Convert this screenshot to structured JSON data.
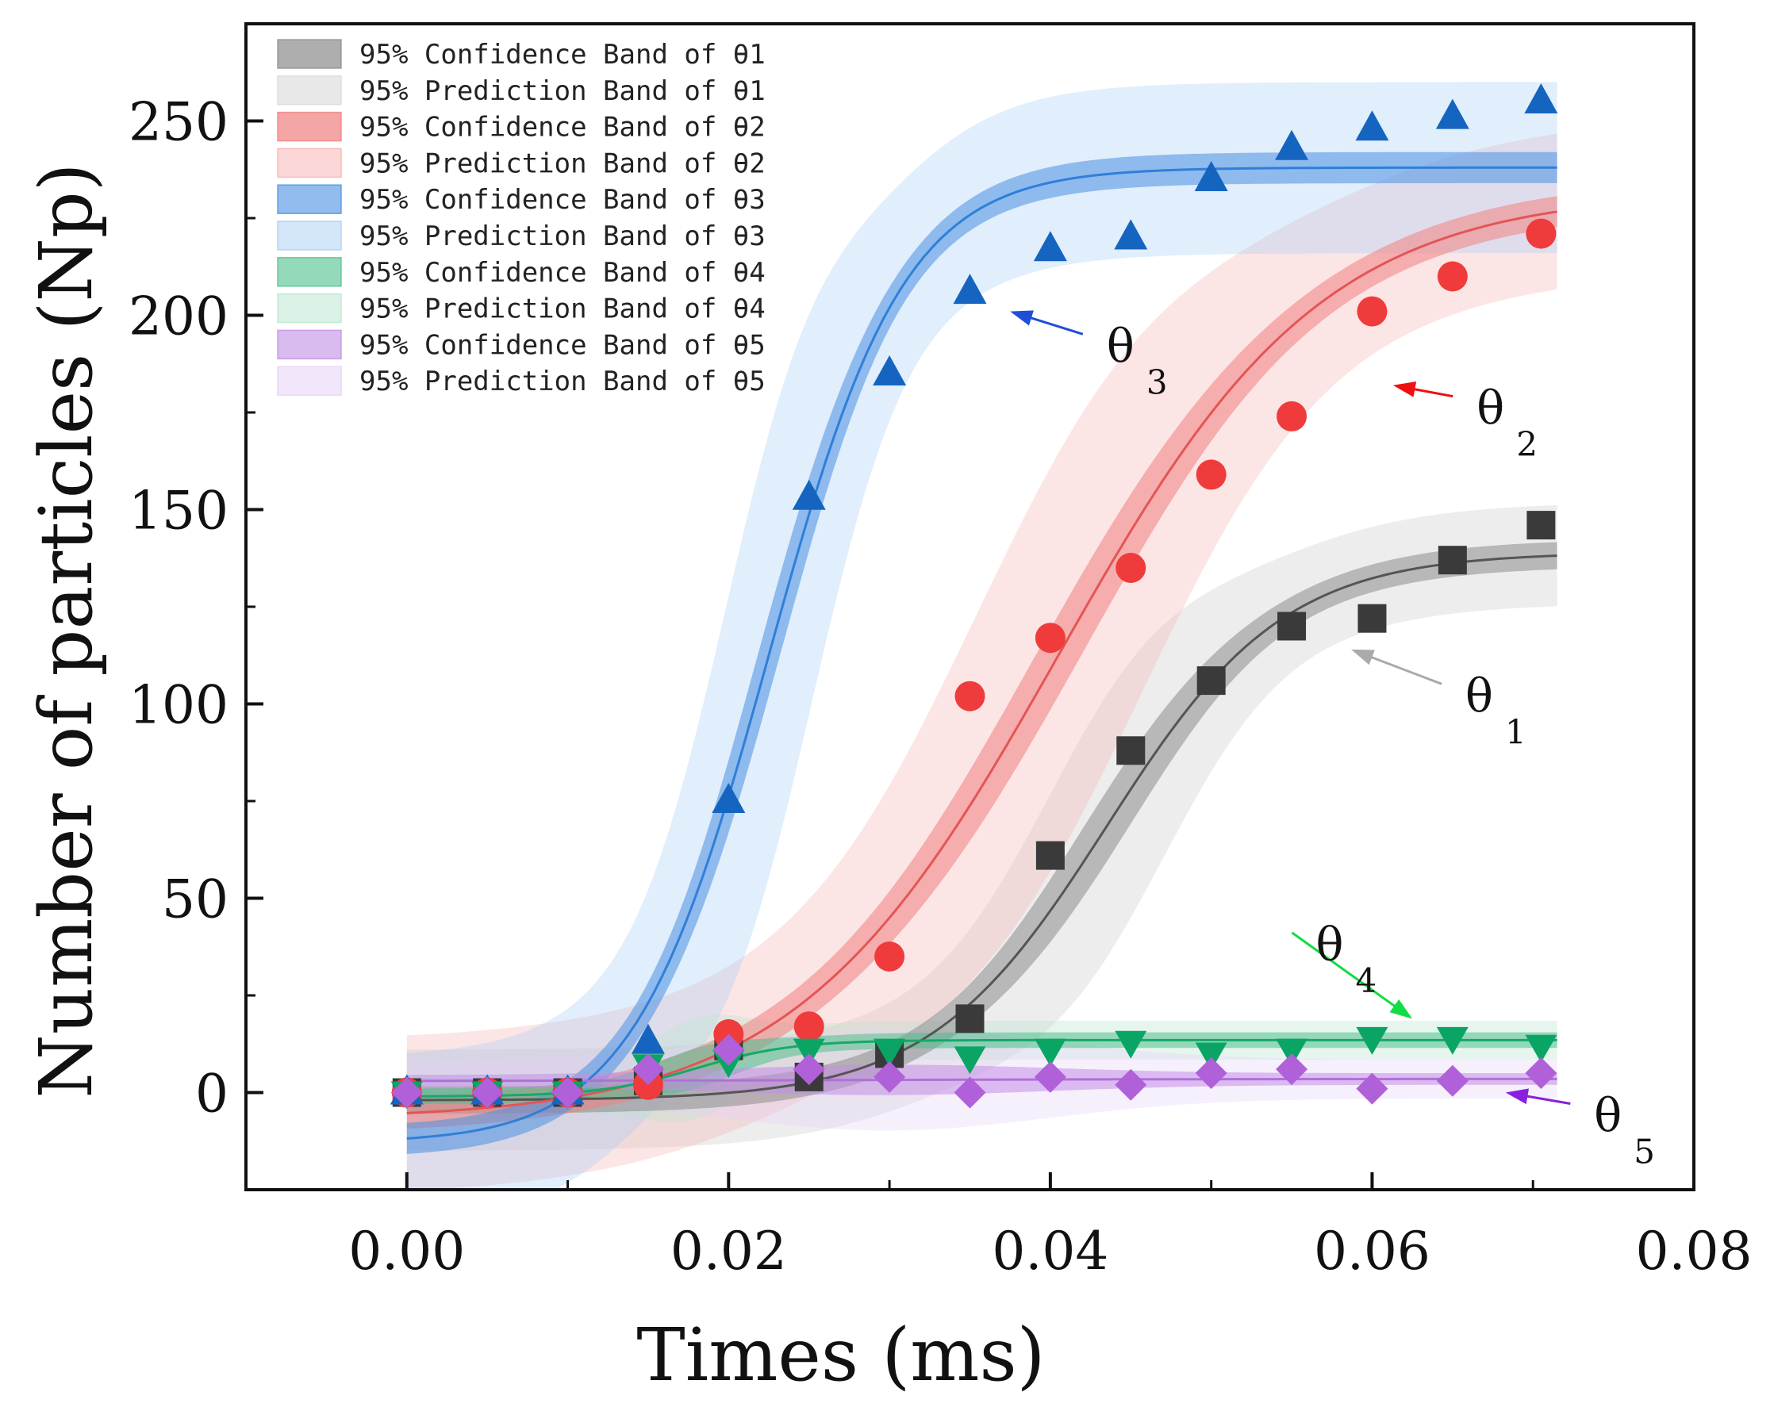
{
  "chart_data": {
    "type": "scatter",
    "title": "",
    "xlabel": "Times (ms)",
    "ylabel": "Number of particles (Np)",
    "xlim": [
      -0.01,
      0.08
    ],
    "ylim": [
      -25,
      275
    ],
    "xticks": [
      0.0,
      0.02,
      0.04,
      0.06,
      0.08
    ],
    "xtick_labels": [
      "0.00",
      "0.02",
      "0.04",
      "0.06",
      "0.08"
    ],
    "yticks": [
      0,
      50,
      100,
      150,
      200,
      250
    ],
    "ytick_labels": [
      "0",
      "50",
      "100",
      "150",
      "200",
      "250"
    ],
    "legend": [
      {
        "label": "95% Confidence Band of  θ1",
        "color": "#8c8c8c",
        "opacity": 0.7
      },
      {
        "label": "95% Prediction Band of  θ1",
        "color": "#d9d9d9",
        "opacity": 0.6
      },
      {
        "label": "95% Confidence Band of  θ2",
        "color": "#f08080",
        "opacity": 0.7
      },
      {
        "label": "95% Prediction Band of  θ2",
        "color": "#f7b0b0",
        "opacity": 0.5
      },
      {
        "label": "95% Confidence Band of  θ3",
        "color": "#4a90e2",
        "opacity": 0.6
      },
      {
        "label": "95% Prediction Band of  θ3",
        "color": "#a9cdf5",
        "opacity": 0.5
      },
      {
        "label": "95% Confidence Band of  θ4",
        "color": "#4fc08d",
        "opacity": 0.6
      },
      {
        "label": "95% Prediction Band of  θ4",
        "color": "#b7e6cf",
        "opacity": 0.5
      },
      {
        "label": "95% Confidence Band of  θ5",
        "color": "#c28ee6",
        "opacity": 0.6
      },
      {
        "label": "95% Prediction Band of  θ5",
        "color": "#e5d0f5",
        "opacity": 0.5
      }
    ],
    "series": [
      {
        "name": "θ1",
        "marker": "square",
        "color": "#3a3a3a",
        "line_color": "#555555",
        "band_color": "#8c8c8c",
        "pred_color": "#cccccc",
        "fit": {
          "A1": -2,
          "A2": 139,
          "x0": 0.0435,
          "dx": 0.0055,
          "ci": 3.5,
          "pi": 13
        },
        "x": [
          0.0,
          0.005,
          0.01,
          0.015,
          0.02,
          0.025,
          0.03,
          0.035,
          0.04,
          0.045,
          0.05,
          0.055,
          0.06,
          0.065,
          0.0705
        ],
        "y": [
          0,
          0,
          0,
          3,
          12,
          4,
          10,
          19,
          61,
          88,
          106,
          120,
          122,
          137,
          146
        ]
      },
      {
        "name": "θ2",
        "marker": "circle",
        "color": "#ef3b3b",
        "line_color": "#e35555",
        "band_color": "#f08080",
        "pred_color": "#f7b5b5",
        "fit": {
          "A1": -7,
          "A2": 232,
          "x0": 0.0405,
          "dx": 0.0082,
          "ci": 4,
          "pi": 20
        },
        "x": [
          0.0,
          0.005,
          0.01,
          0.015,
          0.02,
          0.025,
          0.03,
          0.035,
          0.04,
          0.045,
          0.05,
          0.055,
          0.06,
          0.065,
          0.0705
        ],
        "y": [
          0,
          0,
          0,
          2,
          15,
          17,
          35,
          102,
          117,
          135,
          159,
          174,
          201,
          210,
          221
        ]
      },
      {
        "name": "θ3",
        "marker": "triangle-up",
        "color": "#1565c0",
        "line_color": "#2f7fd8",
        "band_color": "#4a90e2",
        "pred_color": "#a9cdf5",
        "fit": {
          "A1": -13,
          "A2": 238,
          "x0": 0.0225,
          "dx": 0.0042,
          "ci": 4,
          "pi": 22
        },
        "x": [
          0.0,
          0.005,
          0.01,
          0.015,
          0.02,
          0.025,
          0.03,
          0.035,
          0.04,
          0.045,
          0.05,
          0.055,
          0.06,
          0.065,
          0.0705
        ],
        "y": [
          0,
          0,
          0,
          13,
          75,
          153,
          185,
          206,
          217,
          220,
          235,
          243,
          248,
          251,
          255
        ]
      },
      {
        "name": "θ4",
        "marker": "triangle-down",
        "color": "#0aa565",
        "line_color": "#16a86a",
        "band_color": "#4fc08d",
        "pred_color": "#b7e6cf",
        "fit": {
          "A1": -1,
          "A2": 13.5,
          "x0": 0.018,
          "dx": 0.003,
          "ci": 2,
          "pi": 5
        },
        "x": [
          0.0,
          0.005,
          0.01,
          0.015,
          0.02,
          0.025,
          0.03,
          0.035,
          0.04,
          0.045,
          0.05,
          0.055,
          0.06,
          0.065,
          0.0705
        ],
        "y": [
          0,
          0,
          0,
          7,
          8,
          11,
          11,
          9,
          11,
          13,
          10,
          11,
          14,
          14,
          12
        ]
      },
      {
        "name": "θ5",
        "marker": "diamond",
        "color": "#b060d8",
        "line_color": "#b070d8",
        "band_color": "#c28ee6",
        "pred_color": "#e5d0f5",
        "fit": {
          "A1": 3,
          "A2": 3.5,
          "x0": 0.03,
          "dx": 0.01,
          "ci": 1.5,
          "pi": 5
        },
        "x": [
          0.0,
          0.005,
          0.01,
          0.015,
          0.02,
          0.025,
          0.03,
          0.035,
          0.04,
          0.045,
          0.05,
          0.055,
          0.06,
          0.065,
          0.0705
        ],
        "y": [
          0,
          0,
          0,
          6,
          11,
          6,
          4,
          0,
          4,
          2,
          5,
          6,
          1,
          3,
          5
        ]
      }
    ],
    "annotations": [
      {
        "symbol": "θ",
        "sub": "3",
        "color": "#1f4fd8",
        "arrow_to": [
          0.0375,
          201
        ],
        "text_at": [
          0.0435,
          188
        ]
      },
      {
        "symbol": "θ",
        "sub": "2",
        "color": "#ee1111",
        "arrow_to": [
          0.0613,
          182
        ],
        "text_at": [
          0.0665,
          172
        ]
      },
      {
        "symbol": "θ",
        "sub": "1",
        "color": "#aaaaaa",
        "arrow_to": [
          0.0587,
          114
        ],
        "text_at": [
          0.0658,
          98
        ]
      },
      {
        "symbol": "θ",
        "sub": "4",
        "color": "#11dd44",
        "arrow_to": [
          0.0625,
          19
        ],
        "text_at": [
          0.0565,
          34
        ]
      },
      {
        "symbol": "θ",
        "sub": "5",
        "color": "#8a1fe0",
        "arrow_to": [
          0.0683,
          0
        ],
        "text_at": [
          0.0738,
          -10
        ]
      }
    ]
  }
}
